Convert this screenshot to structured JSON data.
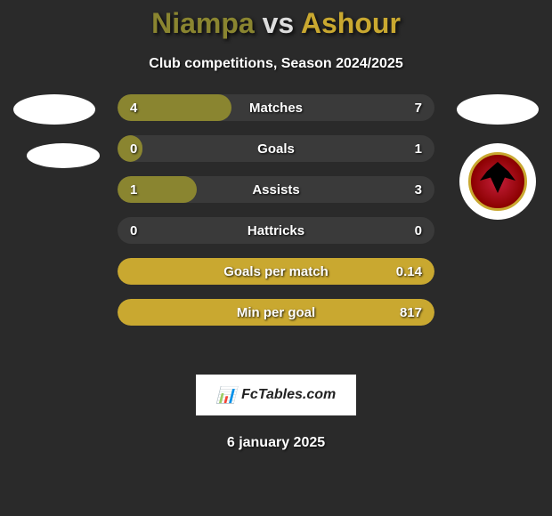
{
  "title": {
    "player1": "Niampa",
    "vs": "vs",
    "player2": "Ashour"
  },
  "subtitle": "Club competitions, Season 2024/2025",
  "colors": {
    "player1": "#8a8530",
    "player2": "#c9a830",
    "vs": "#dddddd",
    "text": "#ffffff",
    "background": "#2a2a2a",
    "bar_bg": "#3a3a3a",
    "brand_bg": "#ffffff",
    "brand_text": "#222222"
  },
  "stats": [
    {
      "label": "Matches",
      "left_value": "4",
      "right_value": "7",
      "left_width_pct": 36,
      "right_width_pct": 64,
      "left_fill_color": "#8a8530",
      "right_fill_color": "transparent"
    },
    {
      "label": "Goals",
      "left_value": "0",
      "right_value": "1",
      "left_width_pct": 8,
      "right_width_pct": 92,
      "left_fill_color": "#8a8530",
      "right_fill_color": "transparent"
    },
    {
      "label": "Assists",
      "left_value": "1",
      "right_value": "3",
      "left_width_pct": 25,
      "right_width_pct": 75,
      "left_fill_color": "#8a8530",
      "right_fill_color": "transparent"
    },
    {
      "label": "Hattricks",
      "left_value": "0",
      "right_value": "0",
      "left_width_pct": 0,
      "right_width_pct": 0,
      "left_fill_color": "transparent",
      "right_fill_color": "transparent"
    },
    {
      "label": "Goals per match",
      "left_value": "",
      "right_value": "0.14",
      "left_width_pct": 0,
      "right_width_pct": 100,
      "left_fill_color": "transparent",
      "right_fill_color": "#c9a830"
    },
    {
      "label": "Min per goal",
      "left_value": "",
      "right_value": "817",
      "left_width_pct": 0,
      "right_width_pct": 100,
      "left_fill_color": "transparent",
      "right_fill_color": "#c9a830"
    }
  ],
  "brand": {
    "icon": "📊",
    "text": "FcTables.com"
  },
  "date": "6 january 2025",
  "logo": {
    "name": "al-ahly-logo",
    "outer_bg": "#ffffff",
    "inner_bg_start": "#c41e3a",
    "inner_bg_end": "#8b0000",
    "border_color": "#c9a830"
  }
}
